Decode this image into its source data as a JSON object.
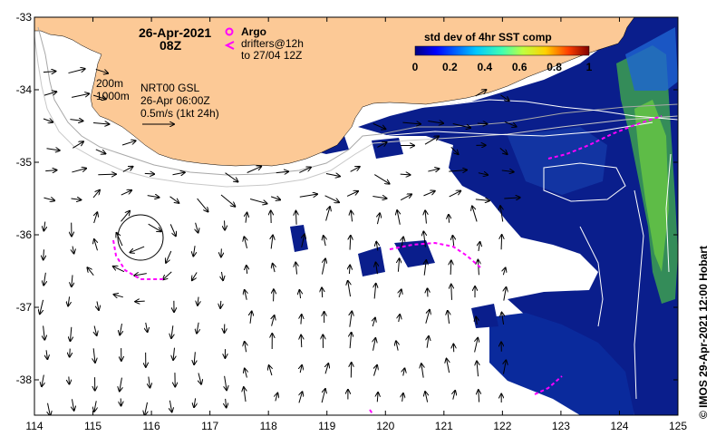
{
  "title": {
    "date": "26-Apr-2021",
    "hour": "08Z"
  },
  "legend": {
    "argo_label": "Argo",
    "drifters_label": "drifters@12h",
    "drifters_to": "to 27/04 12Z",
    "argo_color": "#ff00ff",
    "drifter_color": "#ff00ff"
  },
  "colorbar": {
    "title": "std dev of 4hr SST comp",
    "ticks": [
      "0",
      "0.2",
      "0.4",
      "0.6",
      "0.8",
      "1"
    ]
  },
  "info": {
    "iso200": "200m",
    "iso1000": "1000m",
    "product": "NRT00 GSL",
    "time": "26-Apr 06:00Z",
    "scale": "0.5m/s (1kt 24h)"
  },
  "credit": "© IMOS 29-Apr-2021 12:00 Hobart",
  "axes": {
    "x_ticks": [
      "114",
      "115",
      "116",
      "117",
      "118",
      "119",
      "120",
      "121",
      "122",
      "123",
      "124",
      "125"
    ],
    "y_ticks": [
      "-33",
      "-34",
      "-35",
      "-36",
      "-37",
      "-38"
    ]
  },
  "colors": {
    "land": "#fcc996",
    "sst_low": "#0a1e8c",
    "sst_mid": "#1e64d2",
    "sst_high": "#50c850",
    "no_data": "#ffffff"
  }
}
